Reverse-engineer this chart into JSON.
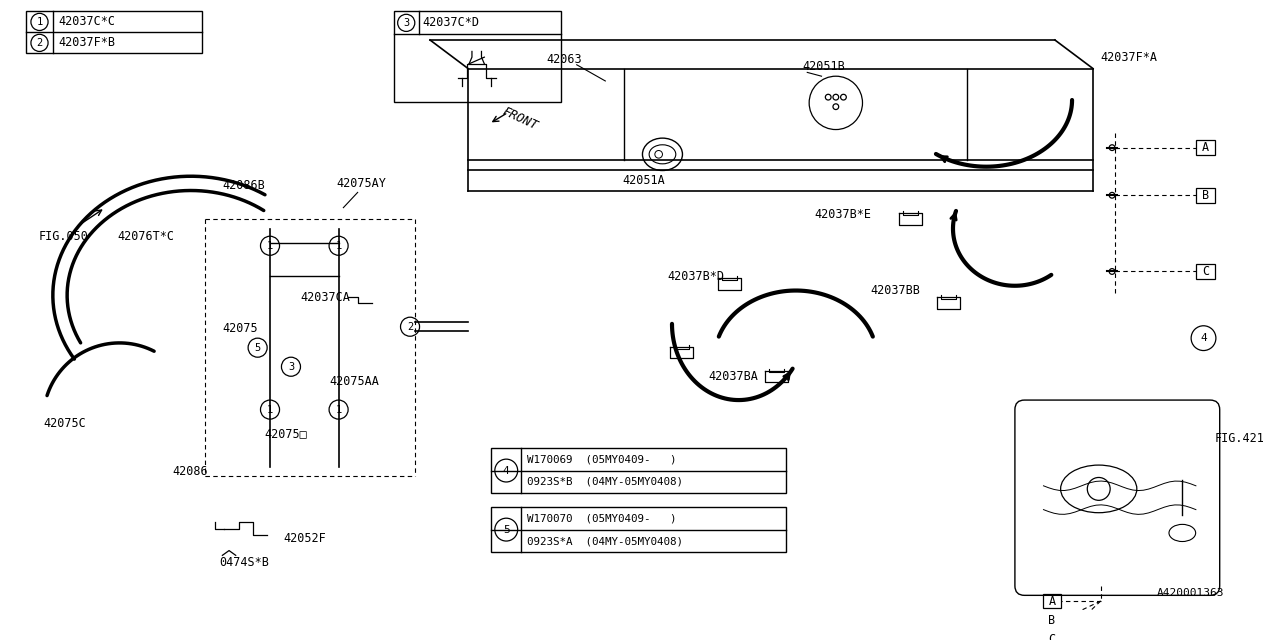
{
  "bg_color": "#ffffff",
  "line_color": "#000000",
  "fig_ref": "A420001363",
  "legend": [
    {
      "num": "1",
      "part": "42037C*C"
    },
    {
      "num": "2",
      "part": "42037F*B"
    }
  ],
  "box3": {
    "num": "3",
    "part": "42037C*D"
  },
  "var_boxes": [
    {
      "num": "4",
      "r1": "0923S*B  (04MY-05MY0408)",
      "r2": "W170069  (05MY0409-   )"
    },
    {
      "num": "5",
      "r1": "0923S*A  (04MY-05MY0408)",
      "r2": "W170070  (05MY0409-   )"
    }
  ]
}
